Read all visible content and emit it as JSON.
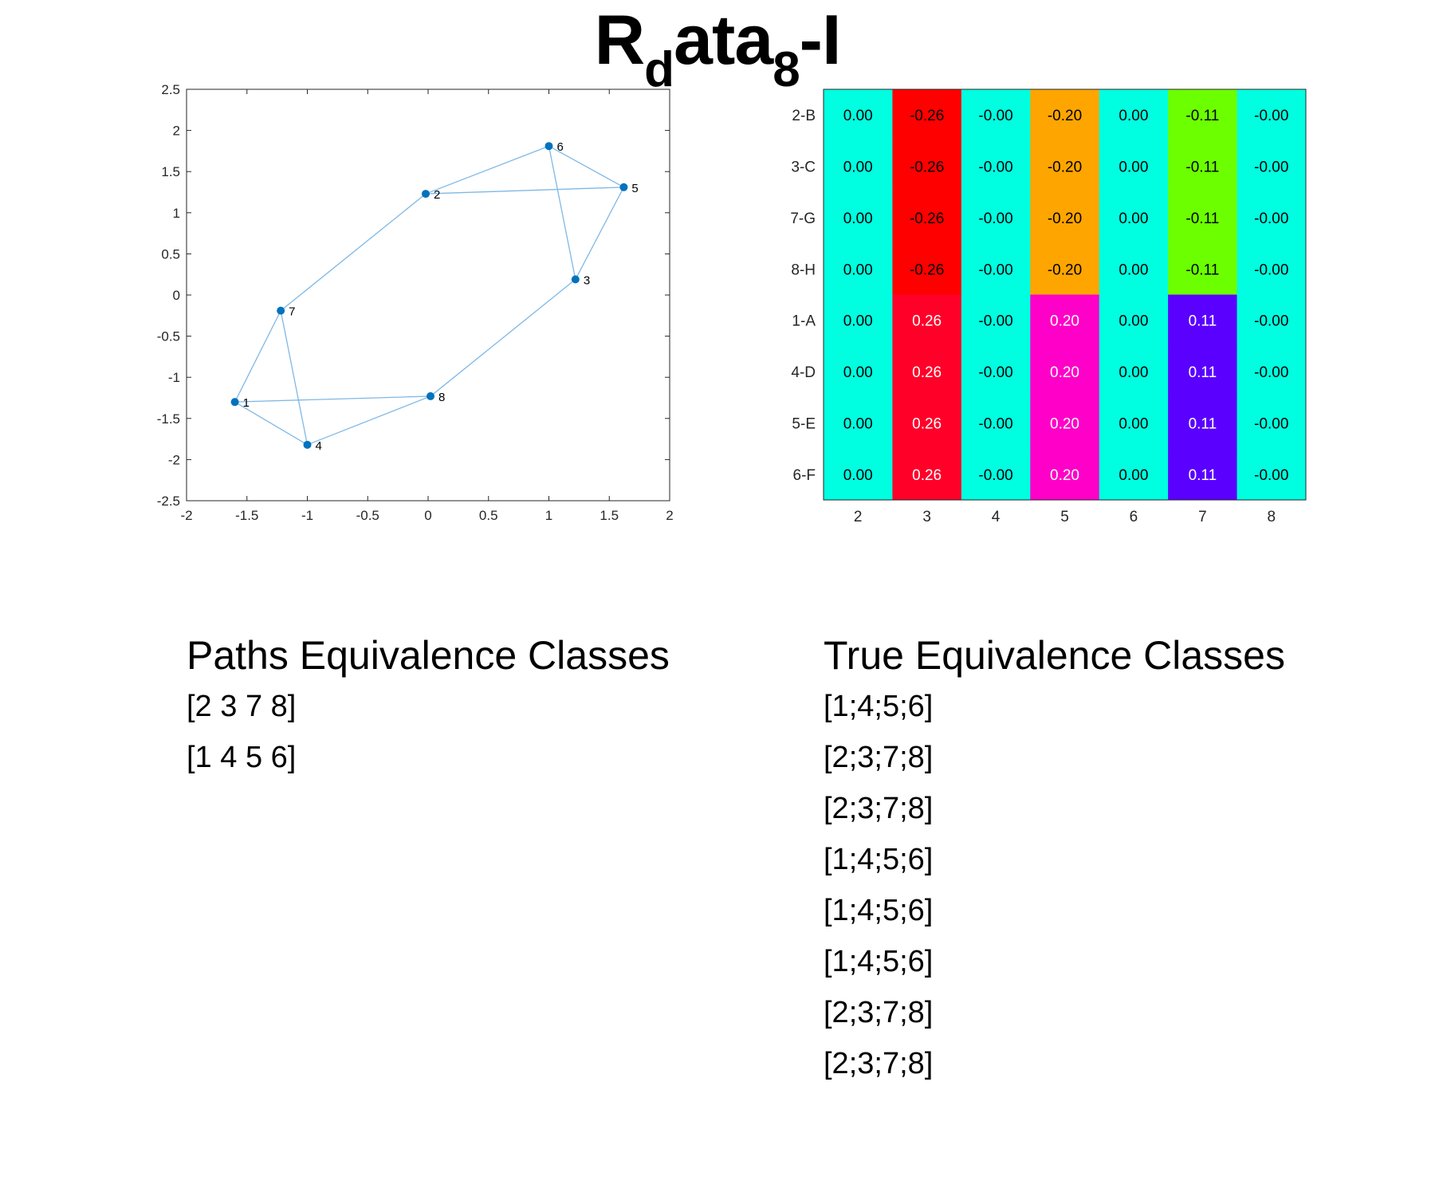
{
  "title": {
    "main": "R",
    "sub1": "d",
    "mid": "ata",
    "sub2": "8",
    "tail": "-I"
  },
  "chart_data": [
    {
      "type": "scatter",
      "xlim": [
        -2,
        2
      ],
      "ylim": [
        -2.5,
        2.5
      ],
      "xticks": [
        "-2",
        "-1.5",
        "-1",
        "-0.5",
        "0",
        "0.5",
        "1",
        "1.5",
        "2"
      ],
      "yticks": [
        "2.5",
        "2",
        "1.5",
        "1",
        "0.5",
        "0",
        "-0.5",
        "-1",
        "-1.5",
        "-2",
        "-2.5"
      ],
      "grid": false,
      "marker_color": "#0072BD",
      "edge_color": "#7fb8e6",
      "points": [
        {
          "label": "1",
          "x": -1.6,
          "y": -1.3
        },
        {
          "label": "2",
          "x": -0.02,
          "y": 1.23
        },
        {
          "label": "3",
          "x": 1.22,
          "y": 0.19
        },
        {
          "label": "4",
          "x": -1.0,
          "y": -1.82
        },
        {
          "label": "5",
          "x": 1.62,
          "y": 1.31
        },
        {
          "label": "6",
          "x": 1.0,
          "y": 1.81
        },
        {
          "label": "7",
          "x": -1.22,
          "y": -0.19
        },
        {
          "label": "8",
          "x": 0.02,
          "y": -1.23
        }
      ],
      "edges": [
        [
          1,
          7
        ],
        [
          1,
          4
        ],
        [
          1,
          8
        ],
        [
          7,
          4
        ],
        [
          7,
          2
        ],
        [
          4,
          8
        ],
        [
          8,
          3
        ],
        [
          3,
          5
        ],
        [
          3,
          6
        ],
        [
          6,
          2
        ],
        [
          6,
          5
        ],
        [
          2,
          5
        ]
      ]
    },
    {
      "type": "heatmap",
      "columns": [
        "2",
        "3",
        "4",
        "5",
        "6",
        "7",
        "8"
      ],
      "rows": [
        "2-B",
        "3-C",
        "7-G",
        "8-H",
        "1-A",
        "4-D",
        "5-E",
        "6-F"
      ],
      "values": [
        [
          "0.00",
          "-0.26",
          "-0.00",
          "-0.20",
          "0.00",
          "-0.11",
          "-0.00"
        ],
        [
          "0.00",
          "-0.26",
          "-0.00",
          "-0.20",
          "0.00",
          "-0.11",
          "-0.00"
        ],
        [
          "0.00",
          "-0.26",
          "-0.00",
          "-0.20",
          "0.00",
          "-0.11",
          "-0.00"
        ],
        [
          "0.00",
          "-0.26",
          "-0.00",
          "-0.20",
          "0.00",
          "-0.11",
          "-0.00"
        ],
        [
          "0.00",
          "0.26",
          "-0.00",
          "0.20",
          "0.00",
          "0.11",
          "-0.00"
        ],
        [
          "0.00",
          "0.26",
          "-0.00",
          "0.20",
          "0.00",
          "0.11",
          "-0.00"
        ],
        [
          "0.00",
          "0.26",
          "-0.00",
          "0.20",
          "0.00",
          "0.11",
          "-0.00"
        ],
        [
          "0.00",
          "0.26",
          "-0.00",
          "0.20",
          "0.00",
          "0.11",
          "-0.00"
        ]
      ],
      "colors": [
        [
          "#00ffe0",
          "#ff0000",
          "#00ffe0",
          "#ffa500",
          "#00ffe0",
          "#6cff00",
          "#00ffe0"
        ],
        [
          "#00ffe0",
          "#ff0000",
          "#00ffe0",
          "#ffa500",
          "#00ffe0",
          "#6cff00",
          "#00ffe0"
        ],
        [
          "#00ffe0",
          "#ff0000",
          "#00ffe0",
          "#ffa500",
          "#00ffe0",
          "#6cff00",
          "#00ffe0"
        ],
        [
          "#00ffe0",
          "#ff0000",
          "#00ffe0",
          "#ffa500",
          "#00ffe0",
          "#6cff00",
          "#00ffe0"
        ],
        [
          "#00ffe0",
          "#ff0029",
          "#00ffe0",
          "#ff00c8",
          "#00ffe0",
          "#5a00ff",
          "#00ffe0"
        ],
        [
          "#00ffe0",
          "#ff0029",
          "#00ffe0",
          "#ff00c8",
          "#00ffe0",
          "#5a00ff",
          "#00ffe0"
        ],
        [
          "#00ffe0",
          "#ff0029",
          "#00ffe0",
          "#ff00c8",
          "#00ffe0",
          "#5a00ff",
          "#00ffe0"
        ],
        [
          "#00ffe0",
          "#ff0029",
          "#00ffe0",
          "#ff00c8",
          "#00ffe0",
          "#5a00ff",
          "#00ffe0"
        ]
      ],
      "text_colors": [
        [
          "#000000",
          "#000000",
          "#000000",
          "#000000",
          "#000000",
          "#000000",
          "#000000"
        ],
        [
          "#000000",
          "#000000",
          "#000000",
          "#000000",
          "#000000",
          "#000000",
          "#000000"
        ],
        [
          "#000000",
          "#000000",
          "#000000",
          "#000000",
          "#000000",
          "#000000",
          "#000000"
        ],
        [
          "#000000",
          "#000000",
          "#000000",
          "#000000",
          "#000000",
          "#000000",
          "#000000"
        ],
        [
          "#000000",
          "#ffffff",
          "#000000",
          "#ffffff",
          "#000000",
          "#ffffff",
          "#000000"
        ],
        [
          "#000000",
          "#ffffff",
          "#000000",
          "#ffffff",
          "#000000",
          "#ffffff",
          "#000000"
        ],
        [
          "#000000",
          "#ffffff",
          "#000000",
          "#ffffff",
          "#000000",
          "#ffffff",
          "#000000"
        ],
        [
          "#000000",
          "#ffffff",
          "#000000",
          "#ffffff",
          "#000000",
          "#ffffff",
          "#000000"
        ]
      ]
    }
  ],
  "paths": {
    "heading": "Paths Equivalence Classes",
    "items": [
      "[2 3 7 8]",
      "[1 4 5 6]"
    ]
  },
  "true_classes": {
    "heading": "True Equivalence Classes",
    "items": [
      "[1;4;5;6]",
      "[2;3;7;8]",
      "[2;3;7;8]",
      "[1;4;5;6]",
      "[1;4;5;6]",
      "[1;4;5;6]",
      "[2;3;7;8]",
      "[2;3;7;8]"
    ]
  }
}
